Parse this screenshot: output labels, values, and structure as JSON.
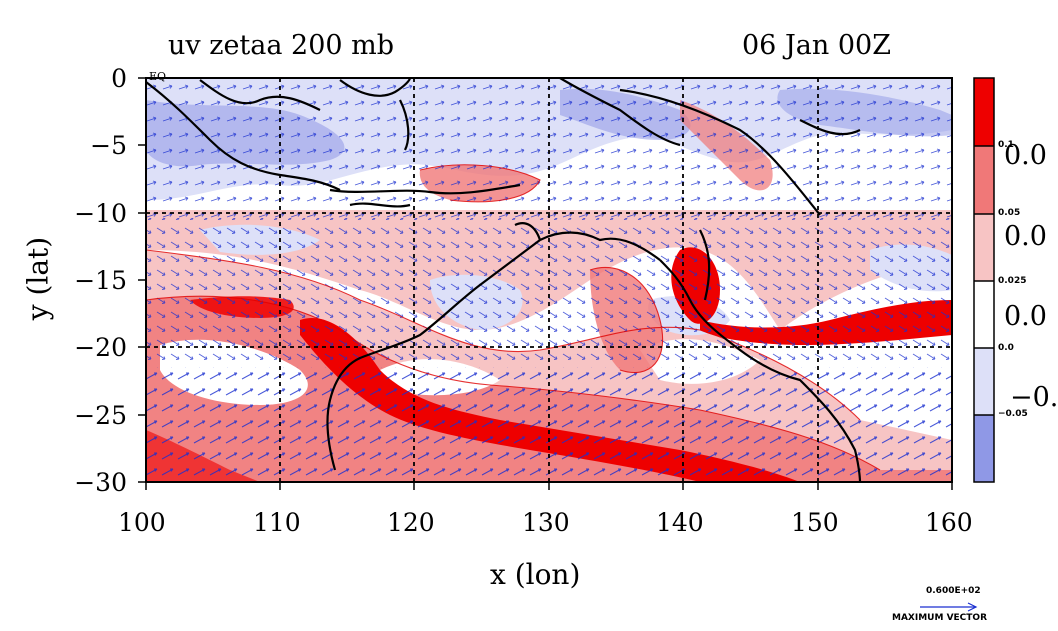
{
  "title_left": "uv zetaa 200 mb",
  "title_right": "06 Jan 00Z",
  "x_axis": {
    "label": "x (lon)",
    "ticks": [
      "100",
      "110",
      "120",
      "130",
      "140",
      "150",
      "160"
    ],
    "range": [
      100,
      160
    ]
  },
  "y_axis": {
    "label": "y (lat)",
    "ticks": [
      "0",
      "−5",
      "−10",
      "−15",
      "−20",
      "−25",
      "−30"
    ],
    "range": [
      -30,
      0
    ]
  },
  "grid": "dashed lines every 10 degrees",
  "corner_label": "EQ",
  "colorbar": {
    "colors": [
      "#ee0000",
      "#f07878",
      "#f7c4c4",
      "#ffffff",
      "#dde0f8",
      "#8f98e6"
    ],
    "labels_small": [
      "0.1",
      "0.05",
      "0.025",
      "0.0",
      "−0.05"
    ],
    "labels_large": [
      "0.0",
      "0.0",
      "0.0",
      "−0."
    ]
  },
  "vector_key": {
    "value": "0.600E+02",
    "label": "MAXIMUM VECTOR"
  },
  "colors": {
    "strong_positive": "#ee0000",
    "positive": "#f07878",
    "weak_positive": "#f7c4c4",
    "weak_negative": "#dde0f8",
    "negative": "#8f98e6",
    "vectors": "#1a2fd0",
    "contour": "#e00000",
    "coastline": "#000000"
  }
}
